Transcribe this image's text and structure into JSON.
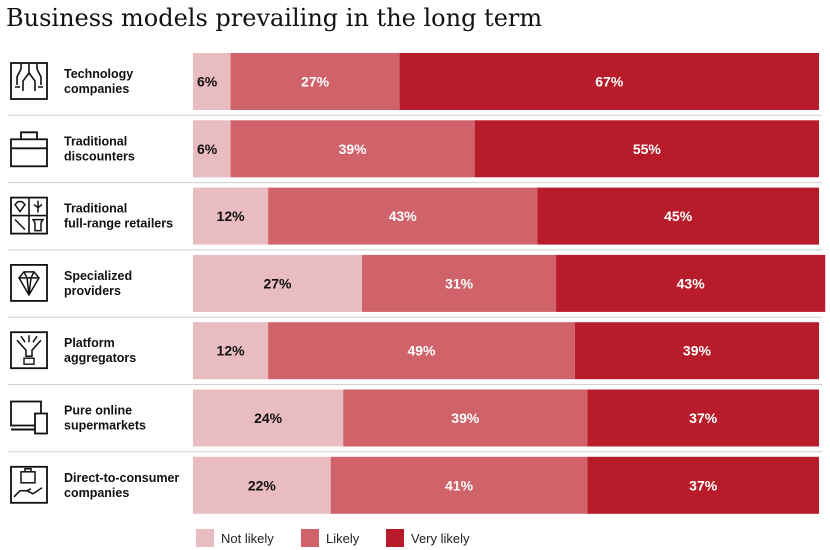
{
  "chart_data": {
    "type": "bar",
    "orientation": "horizontal",
    "stacked": true,
    "percent": true,
    "title": "Business models prevailing in the long term",
    "categories": [
      "Technology companies",
      "Traditional discounters",
      "Traditional full-range retailers",
      "Specialized providers",
      "Platform aggregators",
      "Pure online supermarkets",
      "Direct-to-consumer companies"
    ],
    "category_lines": [
      [
        "Technology",
        "companies"
      ],
      [
        "Traditional",
        "discounters"
      ],
      [
        "Traditional",
        "full-range retailers"
      ],
      [
        "Specialized",
        "providers"
      ],
      [
        "Platform",
        "aggregators"
      ],
      [
        "Pure online",
        "supermarkets"
      ],
      [
        "Direct-to-consumer",
        "companies"
      ]
    ],
    "icons": [
      "chip-icon",
      "briefcase-icon",
      "retail-goods-icon",
      "diamond-icon",
      "funnel-icon",
      "devices-icon",
      "hand-package-icon"
    ],
    "series": [
      {
        "name": "Not likely",
        "color": "#e8bcc0",
        "text_color": "#111111",
        "values": [
          6,
          6,
          12,
          27,
          12,
          24,
          22
        ]
      },
      {
        "name": "Likely",
        "color": "#d0626a",
        "text_color": "#ffffff",
        "values": [
          27,
          39,
          43,
          31,
          49,
          39,
          41
        ]
      },
      {
        "name": "Very likely",
        "color": "#b81c2a",
        "text_color": "#ffffff",
        "values": [
          67,
          55,
          45,
          43,
          39,
          37,
          37
        ]
      }
    ],
    "value_suffix": "%",
    "xlim": [
      0,
      100
    ],
    "legend_position": "bottom"
  }
}
